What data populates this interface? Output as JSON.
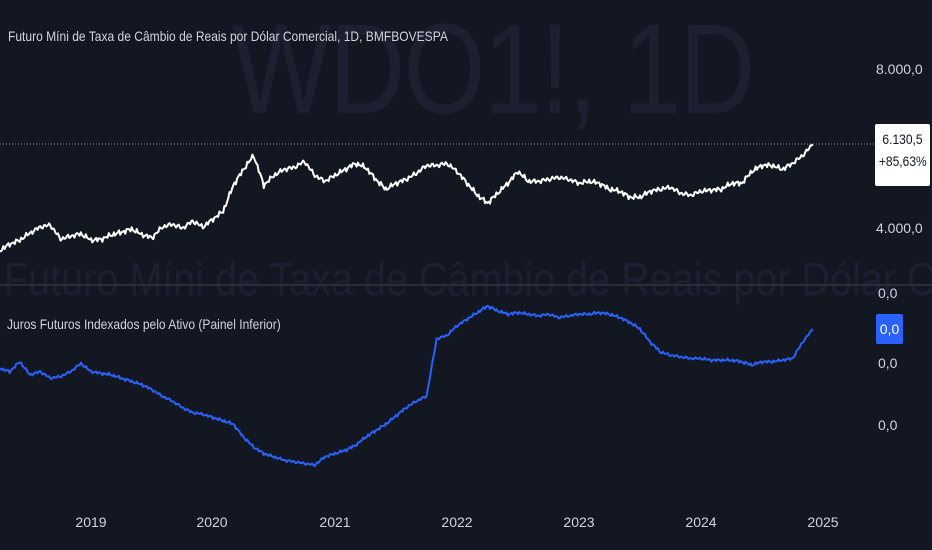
{
  "watermark": {
    "symbol": "WDO1!, 1D",
    "description": "Futuro Míni de Taxa de Câmbio de Reais por Dólar Comercial"
  },
  "main_pane": {
    "title": "Futuro Míni de Taxa de Câmbio de Reais por Dólar Comercial, 1D, BMFBOVESPA",
    "last_price": "6.130,5",
    "change": "+85,63%"
  },
  "indicator_pane": {
    "title": "Juros Futuros Indexados pelo Ativo (Painel Inferior)",
    "current_value": "0,0"
  },
  "colors": {
    "background": "#131722",
    "price_line": "#ffffff",
    "indicator_line": "#2962ff",
    "text": "#d1d4dc"
  },
  "chart_data": [
    {
      "type": "line",
      "series": [
        {
          "values_by_date": [
            [
              "2018-04",
              3.45
            ],
            [
              "2018-05",
              3.62
            ],
            [
              "2018-06",
              3.72
            ],
            [
              "2018-07",
              3.9
            ],
            [
              "2018-08",
              4.05
            ],
            [
              "2018-09",
              4.1
            ],
            [
              "2018-10",
              3.75
            ],
            [
              "2018-11",
              3.82
            ],
            [
              "2018-12",
              3.88
            ],
            [
              "2019-01",
              3.72
            ],
            [
              "2019-02",
              3.74
            ],
            [
              "2019-03",
              3.85
            ],
            [
              "2019-04",
              3.92
            ],
            [
              "2019-05",
              4.0
            ],
            [
              "2019-06",
              3.86
            ],
            [
              "2019-07",
              3.78
            ],
            [
              "2019-08",
              4.05
            ],
            [
              "2019-09",
              4.12
            ],
            [
              "2019-10",
              4.02
            ],
            [
              "2019-11",
              4.2
            ],
            [
              "2019-12",
              4.05
            ],
            [
              "2020-01",
              4.25
            ],
            [
              "2020-02",
              4.45
            ],
            [
              "2020-03",
              5.1
            ],
            [
              "2020-04",
              5.5
            ],
            [
              "2020-05",
              5.85
            ],
            [
              "2020-06",
              5.1
            ],
            [
              "2020-07",
              5.35
            ],
            [
              "2020-08",
              5.5
            ],
            [
              "2020-09",
              5.55
            ],
            [
              "2020-10",
              5.7
            ],
            [
              "2020-11",
              5.35
            ],
            [
              "2020-12",
              5.2
            ],
            [
              "2021-01",
              5.35
            ],
            [
              "2021-02",
              5.5
            ],
            [
              "2021-03",
              5.65
            ],
            [
              "2021-04",
              5.55
            ],
            [
              "2021-05",
              5.25
            ],
            [
              "2021-06",
              5.0
            ],
            [
              "2021-07",
              5.15
            ],
            [
              "2021-08",
              5.25
            ],
            [
              "2021-09",
              5.4
            ],
            [
              "2021-10",
              5.6
            ],
            [
              "2021-11",
              5.6
            ],
            [
              "2021-12",
              5.65
            ],
            [
              "2022-01",
              5.45
            ],
            [
              "2022-02",
              5.15
            ],
            [
              "2022-03",
              4.85
            ],
            [
              "2022-04",
              4.65
            ],
            [
              "2022-05",
              4.9
            ],
            [
              "2022-06",
              5.15
            ],
            [
              "2022-07",
              5.45
            ],
            [
              "2022-08",
              5.2
            ],
            [
              "2022-09",
              5.2
            ],
            [
              "2022-10",
              5.25
            ],
            [
              "2022-11",
              5.3
            ],
            [
              "2022-12",
              5.25
            ],
            [
              "2023-01",
              5.15
            ],
            [
              "2023-02",
              5.2
            ],
            [
              "2023-03",
              5.15
            ],
            [
              "2023-04",
              5.0
            ],
            [
              "2023-05",
              4.95
            ],
            [
              "2023-06",
              4.8
            ],
            [
              "2023-07",
              4.8
            ],
            [
              "2023-08",
              4.95
            ],
            [
              "2023-09",
              5.0
            ],
            [
              "2023-10",
              5.05
            ],
            [
              "2023-11",
              4.9
            ],
            [
              "2023-12",
              4.85
            ],
            [
              "2024-01",
              4.95
            ],
            [
              "2024-02",
              4.98
            ],
            [
              "2024-03",
              5.0
            ],
            [
              "2024-04",
              5.15
            ],
            [
              "2024-05",
              5.15
            ],
            [
              "2024-06",
              5.45
            ],
            [
              "2024-07",
              5.6
            ],
            [
              "2024-08",
              5.6
            ],
            [
              "2024-09",
              5.5
            ],
            [
              "2024-10",
              5.65
            ],
            [
              "2024-11",
              5.85
            ],
            [
              "2024-12",
              6.13
            ]
          ]
        }
      ],
      "y_axis_ticks": [
        "8.000,0",
        "4.000,0"
      ],
      "grid": false
    },
    {
      "type": "line",
      "series": [
        {
          "values_by_date": [
            [
              "2018-04",
              0.62
            ],
            [
              "2018-05",
              0.6
            ],
            [
              "2018-06",
              0.66
            ],
            [
              "2018-07",
              0.58
            ],
            [
              "2018-08",
              0.6
            ],
            [
              "2018-09",
              0.56
            ],
            [
              "2018-10",
              0.57
            ],
            [
              "2018-11",
              0.6
            ],
            [
              "2018-12",
              0.65
            ],
            [
              "2019-01",
              0.6
            ],
            [
              "2019-02",
              0.59
            ],
            [
              "2019-03",
              0.58
            ],
            [
              "2019-04",
              0.56
            ],
            [
              "2019-05",
              0.54
            ],
            [
              "2019-06",
              0.52
            ],
            [
              "2019-07",
              0.49
            ],
            [
              "2019-08",
              0.45
            ],
            [
              "2019-09",
              0.42
            ],
            [
              "2019-10",
              0.38
            ],
            [
              "2019-11",
              0.35
            ],
            [
              "2019-12",
              0.34
            ],
            [
              "2020-01",
              0.32
            ],
            [
              "2020-02",
              0.3
            ],
            [
              "2020-03",
              0.28
            ],
            [
              "2020-04",
              0.2
            ],
            [
              "2020-05",
              0.14
            ],
            [
              "2020-06",
              0.1
            ],
            [
              "2020-07",
              0.08
            ],
            [
              "2020-08",
              0.06
            ],
            [
              "2020-09",
              0.05
            ],
            [
              "2020-10",
              0.04
            ],
            [
              "2020-11",
              0.03
            ],
            [
              "2020-12",
              0.08
            ],
            [
              "2021-01",
              0.1
            ],
            [
              "2021-02",
              0.12
            ],
            [
              "2021-03",
              0.15
            ],
            [
              "2021-04",
              0.2
            ],
            [
              "2021-05",
              0.24
            ],
            [
              "2021-06",
              0.28
            ],
            [
              "2021-07",
              0.33
            ],
            [
              "2021-08",
              0.38
            ],
            [
              "2021-09",
              0.42
            ],
            [
              "2021-10",
              0.45
            ],
            [
              "2021-11",
              0.8
            ],
            [
              "2021-12",
              0.82
            ],
            [
              "2022-01",
              0.88
            ],
            [
              "2022-02",
              0.92
            ],
            [
              "2022-03",
              0.96
            ],
            [
              "2022-04",
              1.0
            ],
            [
              "2022-05",
              0.97
            ],
            [
              "2022-06",
              0.95
            ],
            [
              "2022-07",
              0.96
            ],
            [
              "2022-08",
              0.95
            ],
            [
              "2022-09",
              0.94
            ],
            [
              "2022-10",
              0.95
            ],
            [
              "2022-11",
              0.93
            ],
            [
              "2022-12",
              0.94
            ],
            [
              "2023-01",
              0.95
            ],
            [
              "2023-02",
              0.95
            ],
            [
              "2023-03",
              0.96
            ],
            [
              "2023-04",
              0.95
            ],
            [
              "2023-05",
              0.93
            ],
            [
              "2023-06",
              0.9
            ],
            [
              "2023-07",
              0.86
            ],
            [
              "2023-08",
              0.78
            ],
            [
              "2023-09",
              0.72
            ],
            [
              "2023-10",
              0.7
            ],
            [
              "2023-11",
              0.69
            ],
            [
              "2023-12",
              0.68
            ],
            [
              "2024-01",
              0.68
            ],
            [
              "2024-02",
              0.67
            ],
            [
              "2024-03",
              0.67
            ],
            [
              "2024-04",
              0.67
            ],
            [
              "2024-05",
              0.66
            ],
            [
              "2024-06",
              0.64
            ],
            [
              "2024-07",
              0.66
            ],
            [
              "2024-08",
              0.66
            ],
            [
              "2024-09",
              0.67
            ],
            [
              "2024-10",
              0.68
            ],
            [
              "2024-11",
              0.78
            ],
            [
              "2024-12",
              0.86
            ]
          ]
        }
      ],
      "y_axis_ticks": [
        "0,0",
        "0,0",
        "0,0"
      ],
      "grid": false
    }
  ],
  "x_axis": {
    "tick_labels": [
      "2019",
      "2020",
      "2021",
      "2022",
      "2023",
      "2024",
      "2025"
    ],
    "tick_dates": [
      "2019-01",
      "2020-01",
      "2021-01",
      "2022-01",
      "2023-01",
      "2024-01",
      "2025-01"
    ]
  }
}
